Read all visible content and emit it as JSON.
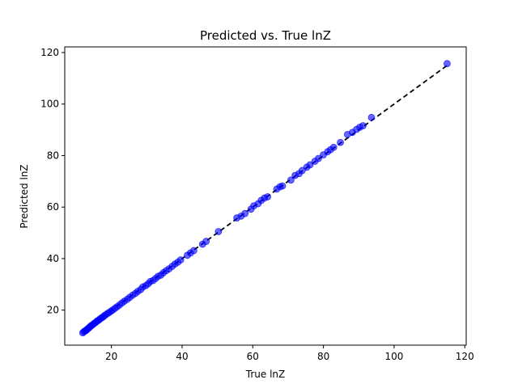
{
  "chart_data": {
    "type": "scatter",
    "title": "Predicted vs. True lnZ",
    "xlabel": "True lnZ",
    "ylabel": "Predicted lnZ",
    "xlim": [
      6.8,
      120.4
    ],
    "ylim": [
      6.4,
      122.2
    ],
    "x_ticks": [
      20,
      40,
      60,
      80,
      100,
      120
    ],
    "y_ticks": [
      20,
      40,
      60,
      80,
      100,
      120
    ],
    "grid": false,
    "legend": "none",
    "colors": {
      "points": "#0000ff",
      "reference_line": "#000000"
    },
    "reference_line": {
      "style": "dashed",
      "from": [
        12,
        12
      ],
      "to": [
        115,
        115
      ]
    },
    "points": [
      [
        11.9,
        11.2
      ],
      [
        12.2,
        11.6
      ],
      [
        12.5,
        11.9
      ],
      [
        12.8,
        12.1
      ],
      [
        13.0,
        12.4
      ],
      [
        13.2,
        12.6
      ],
      [
        13.5,
        13.0
      ],
      [
        13.8,
        13.3
      ],
      [
        14.0,
        13.6
      ],
      [
        14.3,
        14.0
      ],
      [
        14.6,
        14.2
      ],
      [
        15.0,
        14.7
      ],
      [
        15.3,
        15.0
      ],
      [
        15.7,
        15.4
      ],
      [
        16.0,
        15.8
      ],
      [
        16.4,
        16.1
      ],
      [
        16.8,
        16.6
      ],
      [
        17.2,
        17.0
      ],
      [
        17.6,
        17.3
      ],
      [
        18.0,
        17.8
      ],
      [
        18.4,
        18.2
      ],
      [
        18.9,
        18.7
      ],
      [
        19.4,
        19.1
      ],
      [
        19.9,
        19.6
      ],
      [
        20.4,
        20.1
      ],
      [
        21.0,
        20.7
      ],
      [
        21.6,
        21.3
      ],
      [
        22.3,
        22.0
      ],
      [
        23.0,
        22.8
      ],
      [
        23.7,
        23.5
      ],
      [
        24.5,
        24.2
      ],
      [
        25.2,
        25.0
      ],
      [
        26.0,
        25.8
      ],
      [
        26.8,
        26.5
      ],
      [
        27.5,
        27.3
      ],
      [
        28.3,
        28.0
      ],
      [
        28.9,
        29.0
      ],
      [
        29.7,
        29.5
      ],
      [
        30.4,
        30.2
      ],
      [
        31.0,
        31.1
      ],
      [
        31.8,
        31.5
      ],
      [
        32.5,
        32.3
      ],
      [
        33.2,
        33.1
      ],
      [
        34.0,
        33.6
      ],
      [
        34.7,
        34.5
      ],
      [
        35.5,
        35.3
      ],
      [
        36.3,
        36.0
      ],
      [
        37.2,
        37.0
      ],
      [
        38.0,
        37.9
      ],
      [
        38.8,
        38.6
      ],
      [
        39.6,
        39.5
      ],
      [
        41.5,
        41.3
      ],
      [
        42.4,
        42.2
      ],
      [
        43.3,
        43.1
      ],
      [
        45.8,
        45.6
      ],
      [
        46.8,
        46.7
      ],
      [
        50.3,
        50.5
      ],
      [
        55.5,
        55.8
      ],
      [
        56.7,
        56.5
      ],
      [
        57.8,
        57.5
      ],
      [
        59.5,
        59.2
      ],
      [
        60.3,
        60.5
      ],
      [
        61.5,
        61.3
      ],
      [
        62.4,
        62.6
      ],
      [
        63.3,
        63.5
      ],
      [
        64.2,
        64.0
      ],
      [
        66.8,
        67.0
      ],
      [
        67.7,
        67.9
      ],
      [
        68.4,
        68.2
      ],
      [
        70.8,
        70.5
      ],
      [
        72.0,
        72.3
      ],
      [
        73.1,
        73.0
      ],
      [
        74.0,
        74.2
      ],
      [
        75.3,
        75.5
      ],
      [
        76.2,
        76.4
      ],
      [
        77.6,
        77.8
      ],
      [
        78.6,
        78.9
      ],
      [
        80.0,
        80.3
      ],
      [
        81.2,
        81.5
      ],
      [
        82.0,
        82.3
      ],
      [
        82.9,
        83.2
      ],
      [
        84.8,
        85.1
      ],
      [
        86.8,
        88.2
      ],
      [
        88.2,
        89.0
      ],
      [
        89.4,
        90.2
      ],
      [
        90.3,
        91.0
      ],
      [
        91.2,
        91.6
      ],
      [
        93.6,
        94.8
      ],
      [
        115.0,
        115.7
      ]
    ]
  }
}
